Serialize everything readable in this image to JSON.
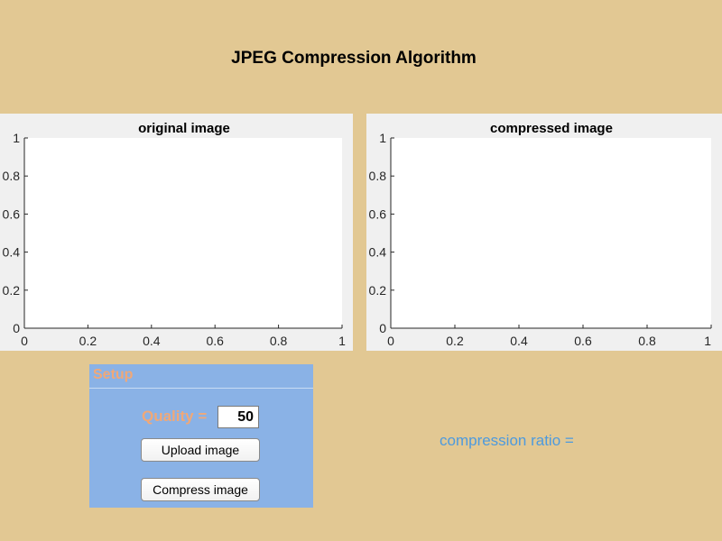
{
  "app": {
    "title": "JPEG Compression Algorithm"
  },
  "axes": {
    "original": {
      "title": "original image",
      "x_ticks": [
        "0",
        "0.2",
        "0.4",
        "0.6",
        "0.8",
        "1"
      ],
      "y_ticks": [
        "0",
        "0.2",
        "0.4",
        "0.6",
        "0.8",
        "1"
      ]
    },
    "compressed": {
      "title": "compressed image",
      "x_ticks": [
        "0",
        "0.2",
        "0.4",
        "0.6",
        "0.8",
        "1"
      ],
      "y_ticks": [
        "0",
        "0.2",
        "0.4",
        "0.6",
        "0.8",
        "1"
      ]
    }
  },
  "setup": {
    "title": "Setup",
    "quality_label": "Quality =",
    "quality_value": "50",
    "upload_label": "Upload image",
    "compress_label": "Compress image"
  },
  "result": {
    "ratio_label": "compression ratio ="
  },
  "colors": {
    "background": "#e2c893",
    "axes_background": "#f0f0f0",
    "setup_panel": "#8ab2e6",
    "setup_text": "#f0a878",
    "ratio_text": "#4d9ade"
  }
}
